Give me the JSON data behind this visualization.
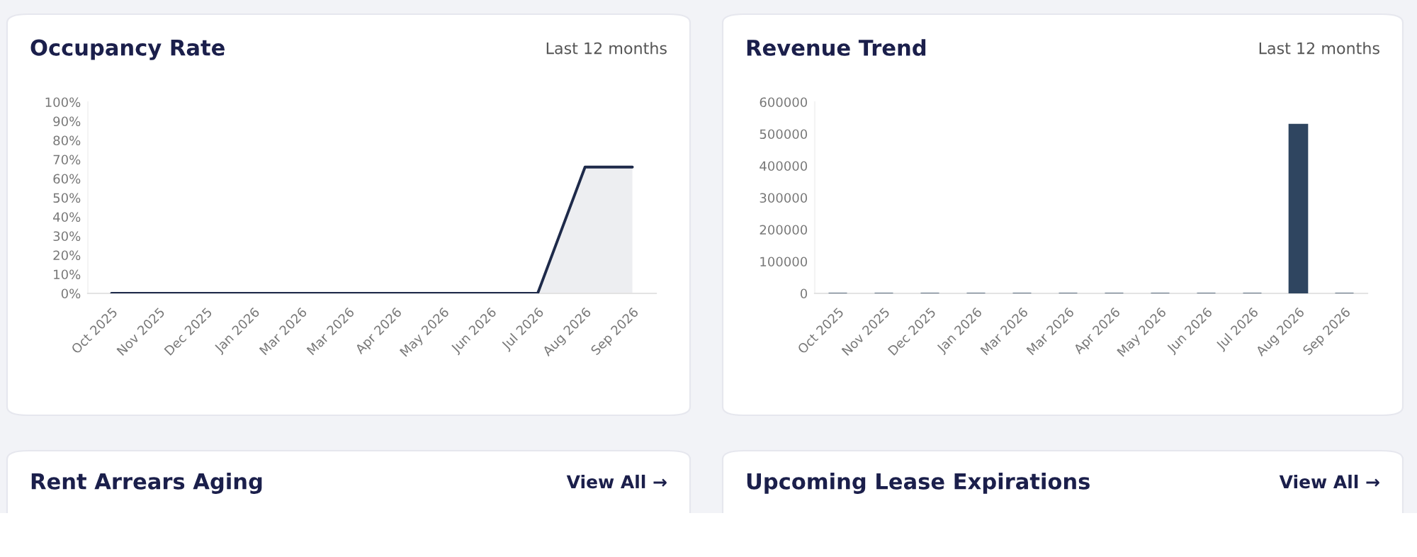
{
  "chart_data": [
    {
      "type": "area",
      "title": "Occupancy Rate",
      "subtitle": "Last 12 months",
      "categories": [
        "Oct 2025",
        "Nov 2025",
        "Dec 2025",
        "Jan 2026",
        "Mar 2026",
        "Mar 2026",
        "Apr 2026",
        "May 2026",
        "Jun 2026",
        "Jul 2026",
        "Aug 2026",
        "Sep 2026"
      ],
      "series": [
        {
          "color": "#1e2a4a",
          "values": [
            0,
            0,
            0,
            0,
            0,
            0,
            0,
            0,
            0,
            0,
            66,
            66
          ]
        }
      ],
      "ylim": [
        0,
        100
      ],
      "yticks": [
        {
          "value": 0,
          "label": "0%"
        },
        {
          "value": 10,
          "label": "10%"
        },
        {
          "value": 20,
          "label": "20%"
        },
        {
          "value": 30,
          "label": "30%"
        },
        {
          "value": 40,
          "label": "40%"
        },
        {
          "value": 50,
          "label": "50%"
        },
        {
          "value": 60,
          "label": "60%"
        },
        {
          "value": 70,
          "label": "70%"
        },
        {
          "value": 80,
          "label": "80%"
        },
        {
          "value": 90,
          "label": "90%"
        },
        {
          "value": 100,
          "label": "100%"
        }
      ],
      "grid": false,
      "legend": false
    },
    {
      "type": "bar",
      "title": "Revenue Trend",
      "subtitle": "Last 12 months",
      "categories": [
        "Oct 2025",
        "Nov 2025",
        "Dec 2025",
        "Jan 2026",
        "Mar 2026",
        "Mar 2026",
        "Apr 2026",
        "May 2026",
        "Jun 2026",
        "Jul 2026",
        "Aug 2026",
        "Sep 2026"
      ],
      "series": [
        {
          "color": "#2f4560",
          "values": [
            0,
            0,
            0,
            0,
            0,
            0,
            0,
            0,
            0,
            0,
            530000,
            0
          ]
        }
      ],
      "ylim": [
        0,
        600000
      ],
      "yticks": [
        0,
        100000,
        200000,
        300000,
        400000,
        500000,
        600000
      ],
      "grid": false,
      "legend": false
    },
    {
      "type": "other",
      "title": "Rent Arrears Aging",
      "annotations": [
        "View All →"
      ]
    },
    {
      "type": "other",
      "title": "Upcoming Lease Expirations",
      "annotations": [
        "View All →"
      ]
    }
  ]
}
